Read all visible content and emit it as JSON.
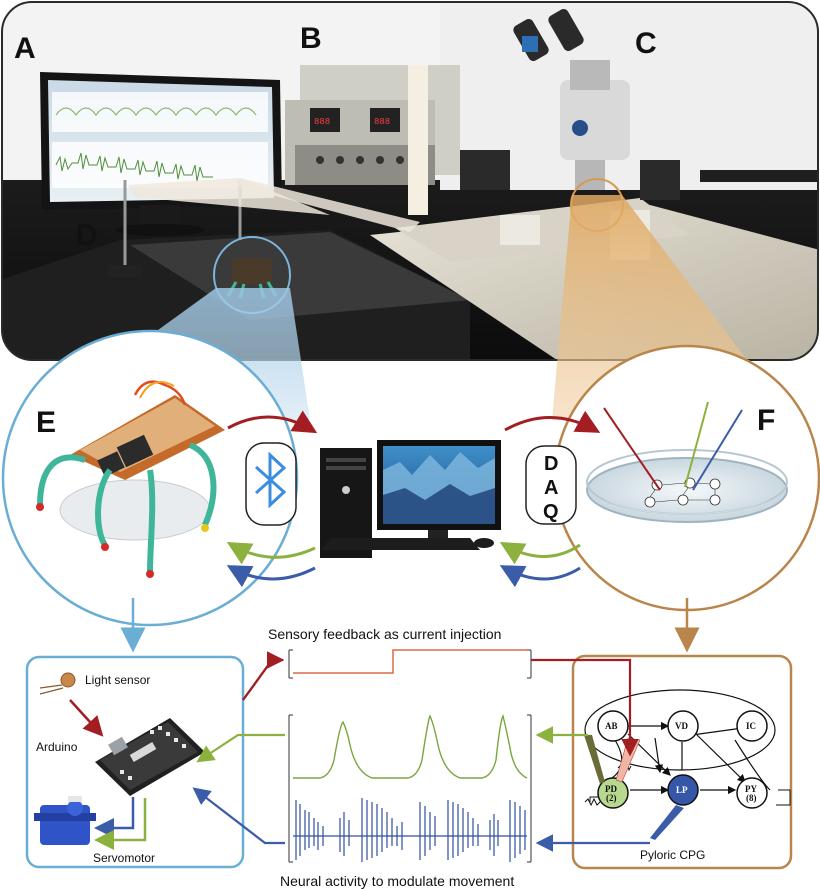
{
  "panels": {
    "A": "A",
    "B": "B",
    "C": "C",
    "D": "D",
    "E": "E",
    "F": "F"
  },
  "daq": {
    "d": "D",
    "a": "A",
    "q": "Q"
  },
  "captions": {
    "sensory_feedback": "Sensory feedback as current injection",
    "neural_activity": "Neural activity to modulate movement"
  },
  "robot_box": {
    "light_sensor": "Light sensor",
    "arduino": "Arduino",
    "servomotor": "Servomotor"
  },
  "cpg": {
    "title": "Pyloric CPG",
    "nodes": {
      "AB": "AB",
      "VD": "VD",
      "IC": "IC",
      "PD": "PD",
      "PD_count": "(2)",
      "LP": "LP",
      "PY": "PY",
      "PY_count": "(8)"
    }
  },
  "icons": {
    "bluetooth": "bluetooth-icon",
    "computer": "desktop-computer-icon",
    "petri_dish": "petri-dish-icon"
  },
  "colors": {
    "blue_frame": "#6aaed6",
    "brown_frame": "#b9854a",
    "red_arrow": "#a31e22",
    "green_arrow": "#8cb13f",
    "blue_arrow": "#3b5ca8",
    "trace_green": "#7aa640",
    "trace_blue": "#304f9e"
  }
}
